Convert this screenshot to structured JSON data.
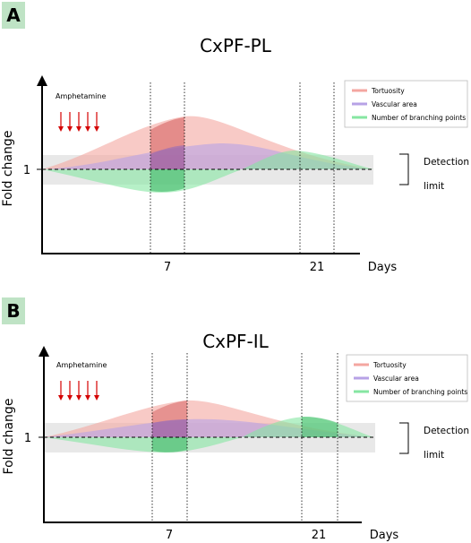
{
  "colors": {
    "tortuosity": "#f4a6a0",
    "vascular_area": "#b7a2e6",
    "branching": "#86e6a2",
    "arrow": "#d40000",
    "badge": "#bfe3c5",
    "band": "#e8e8e8"
  },
  "labels": {
    "y_axis": "Fold change",
    "y_tick": "1",
    "x_ticks": [
      "7",
      "21"
    ],
    "x_unit": "Days",
    "drug": "Amphetamine",
    "detection_line1": "Detection",
    "detection_line2": "limit"
  },
  "legend": [
    {
      "label": "Tortuosity"
    },
    {
      "label": "Vascular area"
    },
    {
      "label": "Number of branching points"
    }
  ],
  "panels": [
    {
      "letter": "A",
      "title": "CxPF-PL"
    },
    {
      "letter": "B",
      "title": "CxPF-IL"
    }
  ]
}
